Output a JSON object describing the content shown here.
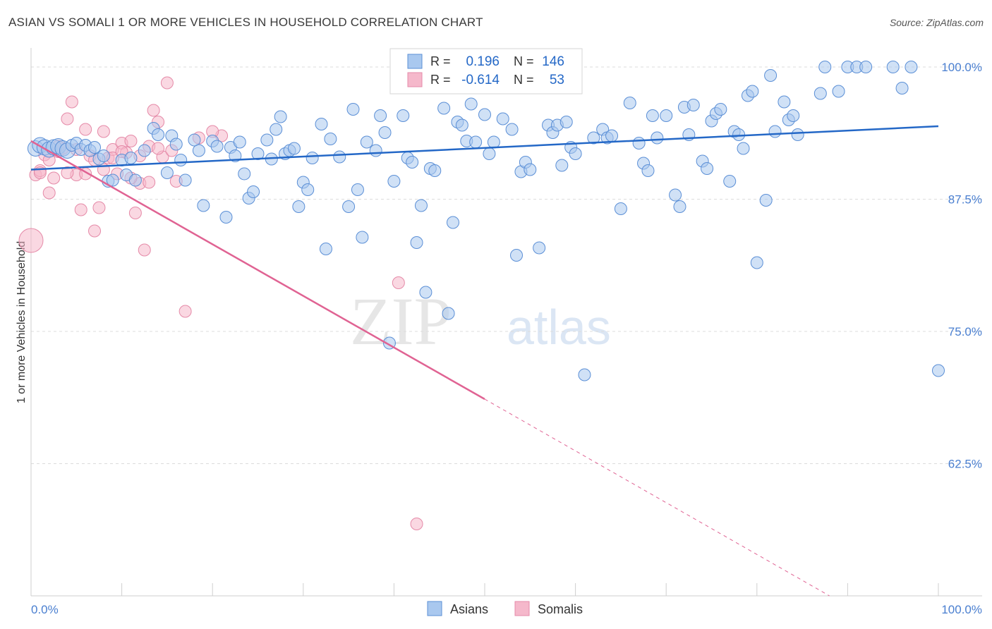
{
  "header": {
    "title": "ASIAN VS SOMALI 1 OR MORE VEHICLES IN HOUSEHOLD CORRELATION CHART",
    "source": "Source: ZipAtlas.com"
  },
  "legend_box": {
    "asians": {
      "r_label": "R =",
      "r_value": "0.196",
      "n_label": "N =",
      "n_value": "146"
    },
    "somalis": {
      "r_label": "R =",
      "r_value": "-0.614",
      "n_label": "N =",
      "n_value": "53"
    }
  },
  "bottom_legend": {
    "asians": "Asians",
    "somalis": "Somalis"
  },
  "watermark": {
    "zip": "ZIP",
    "atlas": "atlas"
  },
  "colors": {
    "asian_fill": "#a9c8ef",
    "asian_stroke": "#5b8fd6",
    "asian_line": "#2468c7",
    "somali_fill": "#f5b8cb",
    "somali_stroke": "#e58aa8",
    "somali_line": "#e06393",
    "tick_text": "#4a7fd0",
    "grid": "#dcdcdc"
  },
  "chart_data": {
    "type": "scatter",
    "title": "ASIAN VS SOMALI 1 OR MORE VEHICLES IN HOUSEHOLD CORRELATION CHART",
    "xlabel": "",
    "ylabel": "1 or more Vehicles in Household",
    "xlim": [
      0,
      100
    ],
    "ylim": [
      50.0,
      101.0
    ],
    "x_tick_labels": [
      "0.0%",
      "100.0%"
    ],
    "y_ticks": [
      100.0,
      87.5,
      75.0,
      62.5
    ],
    "y_tick_labels": [
      "100.0%",
      "87.5%",
      "75.0%",
      "62.5%"
    ],
    "grid": true,
    "legend": "top-center",
    "series": [
      {
        "name": "Asians",
        "r": 0.196,
        "n": 146,
        "trend": {
          "x": [
            0,
            100
          ],
          "y": [
            90.3,
            94.4
          ]
        },
        "points": [
          [
            0.5,
            92.3
          ],
          [
            1,
            92.6
          ],
          [
            1.5,
            92.4
          ],
          [
            2,
            92.2
          ],
          [
            2.5,
            92.4
          ],
          [
            3,
            92.5
          ],
          [
            3.5,
            92.3
          ],
          [
            4,
            92.1
          ],
          [
            4.5,
            92.6
          ],
          [
            5,
            92.8
          ],
          [
            5.5,
            92.2
          ],
          [
            6,
            92.6
          ],
          [
            6.5,
            92.1
          ],
          [
            7,
            92.4
          ],
          [
            7.5,
            91.3
          ],
          [
            8,
            91.6
          ],
          [
            8.5,
            89.2
          ],
          [
            9,
            89.3
          ],
          [
            10,
            91.2
          ],
          [
            10.5,
            89.8
          ],
          [
            11,
            91.4
          ],
          [
            11.5,
            89.3
          ],
          [
            12.5,
            92.1
          ],
          [
            13.5,
            94.2
          ],
          [
            14,
            93.6
          ],
          [
            15,
            90.0
          ],
          [
            15.5,
            93.5
          ],
          [
            16,
            92.7
          ],
          [
            16.5,
            91.2
          ],
          [
            17,
            89.3
          ],
          [
            18,
            93.1
          ],
          [
            18.5,
            92.1
          ],
          [
            19,
            86.9
          ],
          [
            20,
            93.0
          ],
          [
            20.5,
            92.5
          ],
          [
            21.5,
            85.8
          ],
          [
            22,
            92.4
          ],
          [
            22.5,
            91.6
          ],
          [
            23,
            92.9
          ],
          [
            23.5,
            89.9
          ],
          [
            24,
            87.6
          ],
          [
            24.5,
            88.2
          ],
          [
            25,
            91.8
          ],
          [
            26,
            93.1
          ],
          [
            26.5,
            91.3
          ],
          [
            27,
            94.1
          ],
          [
            27.5,
            95.3
          ],
          [
            28,
            91.8
          ],
          [
            28.5,
            92.1
          ],
          [
            29,
            92.3
          ],
          [
            29.5,
            86.8
          ],
          [
            30,
            89.1
          ],
          [
            30.5,
            88.4
          ],
          [
            31,
            91.4
          ],
          [
            32,
            94.6
          ],
          [
            32.5,
            82.8
          ],
          [
            33,
            93.2
          ],
          [
            34,
            91.5
          ],
          [
            35,
            86.8
          ],
          [
            35.5,
            96.0
          ],
          [
            36,
            88.4
          ],
          [
            36.5,
            83.9
          ],
          [
            37,
            92.9
          ],
          [
            38,
            92.1
          ],
          [
            38.5,
            95.4
          ],
          [
            39,
            93.8
          ],
          [
            39.5,
            73.9
          ],
          [
            40,
            89.2
          ],
          [
            41,
            95.4
          ],
          [
            41.5,
            91.4
          ],
          [
            42,
            91.0
          ],
          [
            42.5,
            83.4
          ],
          [
            43,
            86.9
          ],
          [
            43.5,
            78.7
          ],
          [
            44,
            90.4
          ],
          [
            44.5,
            90.2
          ],
          [
            45.5,
            96.1
          ],
          [
            46,
            76.7
          ],
          [
            46.5,
            85.3
          ],
          [
            47,
            94.8
          ],
          [
            47.5,
            94.5
          ],
          [
            48,
            93.0
          ],
          [
            48.5,
            96.5
          ],
          [
            49,
            92.9
          ],
          [
            50,
            95.5
          ],
          [
            50.5,
            91.8
          ],
          [
            51,
            92.9
          ],
          [
            52,
            95.1
          ],
          [
            53,
            94.1
          ],
          [
            53.5,
            82.2
          ],
          [
            54,
            90.1
          ],
          [
            54.5,
            91.0
          ],
          [
            55,
            90.3
          ],
          [
            56,
            82.9
          ],
          [
            57,
            94.5
          ],
          [
            57.5,
            93.8
          ],
          [
            58,
            94.5
          ],
          [
            58.5,
            90.7
          ],
          [
            59,
            94.8
          ],
          [
            59.5,
            92.4
          ],
          [
            60,
            91.8
          ],
          [
            61,
            70.9
          ],
          [
            62,
            93.3
          ],
          [
            63,
            94.1
          ],
          [
            63.5,
            93.3
          ],
          [
            64,
            93.5
          ],
          [
            65,
            86.6
          ],
          [
            66,
            96.6
          ],
          [
            67,
            92.8
          ],
          [
            67.5,
            90.9
          ],
          [
            68,
            90.2
          ],
          [
            68.5,
            95.4
          ],
          [
            69,
            93.3
          ],
          [
            70,
            95.4
          ],
          [
            71,
            87.9
          ],
          [
            71.5,
            86.8
          ],
          [
            72,
            96.2
          ],
          [
            72.5,
            93.6
          ],
          [
            73,
            96.4
          ],
          [
            74,
            91.1
          ],
          [
            74.5,
            90.4
          ],
          [
            75,
            94.9
          ],
          [
            75.5,
            95.6
          ],
          [
            76,
            96.0
          ],
          [
            77,
            89.2
          ],
          [
            77.5,
            93.9
          ],
          [
            78,
            93.6
          ],
          [
            78.5,
            92.3
          ],
          [
            79,
            97.3
          ],
          [
            79.5,
            97.7
          ],
          [
            80,
            81.5
          ],
          [
            81,
            87.4
          ],
          [
            81.5,
            99.2
          ],
          [
            82,
            93.9
          ],
          [
            83,
            96.7
          ],
          [
            83.5,
            95.0
          ],
          [
            84,
            95.4
          ],
          [
            84.5,
            93.6
          ],
          [
            87,
            97.5
          ],
          [
            87.5,
            100.0
          ],
          [
            89,
            97.7
          ],
          [
            90,
            100.0
          ],
          [
            91,
            100.0
          ],
          [
            92,
            100.0
          ],
          [
            95,
            100.0
          ],
          [
            96,
            98.0
          ],
          [
            97,
            100.0
          ],
          [
            100,
            71.3
          ]
        ]
      },
      {
        "name": "Somalis",
        "r": -0.614,
        "n": 53,
        "trend": {
          "x": [
            0,
            50
          ],
          "y": [
            93.0,
            68.6
          ]
        },
        "trend_dashed": {
          "x": [
            50,
            88
          ],
          "y": [
            68.6,
            50.0
          ]
        },
        "points": [
          [
            0,
            83.6
          ],
          [
            0.5,
            89.8
          ],
          [
            1,
            90.2
          ],
          [
            1.5,
            91.7
          ],
          [
            2,
            88.1
          ],
          [
            2.5,
            89.5
          ],
          [
            3,
            92.0
          ],
          [
            3.5,
            92.3
          ],
          [
            4,
            95.1
          ],
          [
            4.5,
            96.7
          ],
          [
            5,
            89.8
          ],
          [
            5.5,
            86.5
          ],
          [
            6,
            94.1
          ],
          [
            6.5,
            91.6
          ],
          [
            7,
            84.5
          ],
          [
            7.5,
            86.7
          ],
          [
            8,
            93.9
          ],
          [
            8.5,
            91.4
          ],
          [
            9,
            92.2
          ],
          [
            9.5,
            89.9
          ],
          [
            10,
            92.8
          ],
          [
            10.5,
            91.9
          ],
          [
            11,
            93.0
          ],
          [
            11.5,
            86.2
          ],
          [
            12,
            89.0
          ],
          [
            12.5,
            82.7
          ],
          [
            13,
            92.5
          ],
          [
            13.5,
            95.9
          ],
          [
            14,
            94.8
          ],
          [
            14.5,
            91.5
          ],
          [
            15,
            98.5
          ],
          [
            15.5,
            92.1
          ],
          [
            16,
            89.2
          ],
          [
            17,
            76.9
          ],
          [
            18.5,
            93.3
          ],
          [
            21,
            93.5
          ],
          [
            40.5,
            79.6
          ],
          [
            42.5,
            56.8
          ],
          [
            1,
            90.0
          ],
          [
            2,
            91.2
          ],
          [
            3,
            92.5
          ],
          [
            4,
            90.0
          ],
          [
            5,
            92.2
          ],
          [
            6,
            89.9
          ],
          [
            7,
            91.2
          ],
          [
            8,
            90.3
          ],
          [
            9,
            91.4
          ],
          [
            10,
            92.0
          ],
          [
            11,
            89.5
          ],
          [
            12,
            91.6
          ],
          [
            13,
            89.1
          ],
          [
            14,
            92.3
          ],
          [
            20,
            93.9
          ]
        ]
      }
    ]
  }
}
